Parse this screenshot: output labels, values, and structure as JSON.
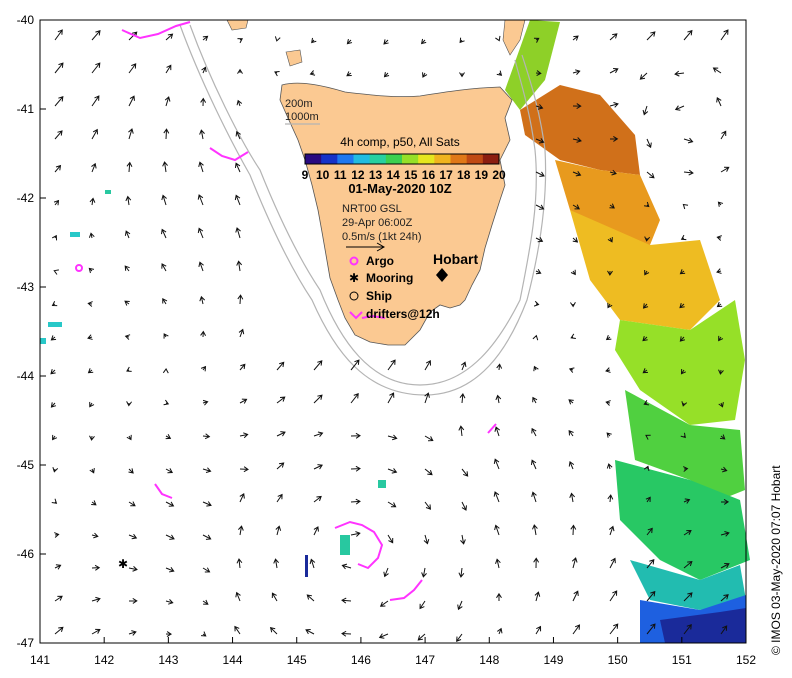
{
  "axes": {
    "x_ticks": [
      "141",
      "142",
      "143",
      "144",
      "145",
      "146",
      "147",
      "148",
      "149",
      "150",
      "151",
      "152"
    ],
    "y_ticks": [
      "-40",
      "-41",
      "-42",
      "-43",
      "-44",
      "-45",
      "-46",
      "-47"
    ],
    "lon_range": [
      141,
      152
    ],
    "lat_range": [
      -47,
      -40
    ]
  },
  "depth_legend": {
    "line1": "200m",
    "line2": "1000m"
  },
  "colorbar": {
    "title": "4h comp, p50, All Sats",
    "ticks": [
      "9",
      "10",
      "11",
      "12",
      "13",
      "14",
      "15",
      "16",
      "17",
      "18",
      "19",
      "20"
    ],
    "colors": [
      "#2a0a80",
      "#1632c8",
      "#1e78f0",
      "#22bce0",
      "#28d0a0",
      "#3cd050",
      "#96e028",
      "#e6e61e",
      "#f0b41e",
      "#e07818",
      "#c04a14",
      "#8c1e10"
    ]
  },
  "date": "01-May-2020 10Z",
  "current_info": {
    "line1": "NRT00 GSL",
    "line2": "29-Apr 06:00Z",
    "line3": "0.5m/s (1kt 24h)"
  },
  "legend_items": {
    "argo": "Argo",
    "mooring": "Mooring",
    "ship": "Ship",
    "drifters": "drifters@12h"
  },
  "city": "Hobart",
  "credit": "© IMOS 03-May-2020 07:07 Hobart",
  "colors": {
    "land": "#fbc992",
    "drifter": "#ff33ff",
    "isobath": "#b4b4b4"
  }
}
